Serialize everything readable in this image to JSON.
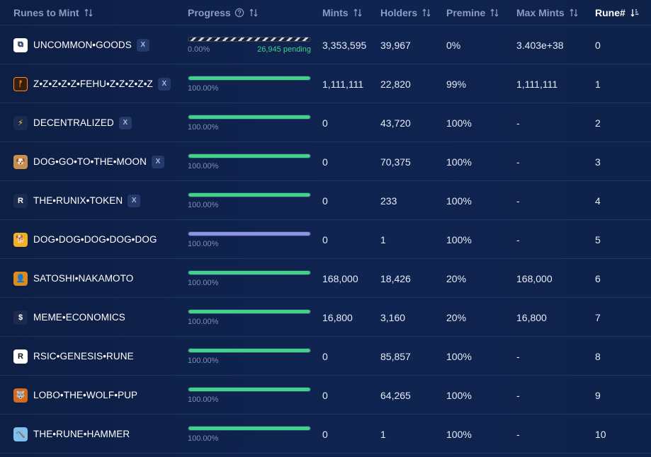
{
  "header": {
    "name": "Runes to Mint",
    "progress": "Progress",
    "mints": "Mints",
    "holders": "Holders",
    "premine": "Premine",
    "max_mints": "Max Mints",
    "rune_num": "Rune#"
  },
  "colors": {
    "progress_green": "#3ed28b",
    "progress_purple": "#8f91e6",
    "active_header": "#ffffff",
    "header_text": "#8a9cc4"
  },
  "rows": [
    {
      "icon": "square-glyph-icon",
      "glyph": "⧉",
      "name": "UNCOMMON•GOODS",
      "x": "X",
      "progress": 0,
      "bar": "pending",
      "pct": "0.00%",
      "pending": "26,945 pending",
      "mints": "3,353,595",
      "holders": "39,967",
      "premine": "0%",
      "max": "3.403e+38",
      "rune": "0"
    },
    {
      "icon": "fehu-icon",
      "glyph": "ᚠ",
      "name": "Z•Z•Z•Z•Z•FEHU•Z•Z•Z•Z•Z",
      "x": "X",
      "progress": 1,
      "bar": "green",
      "pct": "100.00%",
      "mints": "1,111,111",
      "holders": "22,820",
      "premine": "99%",
      "max": "1,111,111",
      "rune": "1"
    },
    {
      "icon": "lightning-icon",
      "glyph": "⚡",
      "name": "DECENTRALIZED",
      "x": "X",
      "progress": 1,
      "bar": "green",
      "pct": "100.00%",
      "mints": "0",
      "holders": "43,720",
      "premine": "100%",
      "max": "-",
      "rune": "2"
    },
    {
      "icon": "dog-avatar-icon",
      "glyph": "🐶",
      "name": "DOG•GO•TO•THE•MOON",
      "x": "X",
      "progress": 1,
      "bar": "green",
      "pct": "100.00%",
      "mints": "0",
      "holders": "70,375",
      "premine": "100%",
      "max": "-",
      "rune": "3"
    },
    {
      "icon": "runix-r-icon",
      "glyph": "R",
      "name": "THE•RUNIX•TOKEN",
      "x": "X",
      "progress": 1,
      "bar": "green",
      "pct": "100.00%",
      "mints": "0",
      "holders": "233",
      "premine": "100%",
      "max": "-",
      "rune": "4"
    },
    {
      "icon": "yellow-dog-icon",
      "glyph": "🐕",
      "name": "DOG•DOG•DOG•DOG•DOG",
      "progress": 1,
      "bar": "purple",
      "pct": "100.00%",
      "mints": "0",
      "holders": "1",
      "premine": "100%",
      "max": "-",
      "rune": "5"
    },
    {
      "icon": "satoshi-silhouette-icon",
      "glyph": "👤",
      "name": "SATOSHI•NAKAMOTO",
      "progress": 1,
      "bar": "green",
      "pct": "100.00%",
      "mints": "168,000",
      "holders": "18,426",
      "premine": "20%",
      "max": "168,000",
      "rune": "6"
    },
    {
      "icon": "dollar-icon",
      "glyph": "$",
      "name": "MEME•ECONOMICS",
      "progress": 1,
      "bar": "green",
      "pct": "100.00%",
      "mints": "16,800",
      "holders": "3,160",
      "premine": "20%",
      "max": "16,800",
      "rune": "7"
    },
    {
      "icon": "rsic-r-icon",
      "glyph": "R",
      "name": "RSIC•GENESIS•RUNE",
      "progress": 1,
      "bar": "green",
      "pct": "100.00%",
      "mints": "0",
      "holders": "85,857",
      "premine": "100%",
      "max": "-",
      "rune": "8"
    },
    {
      "icon": "wolf-pup-icon",
      "glyph": "🐺",
      "name": "LOBO•THE•WOLF•PUP",
      "progress": 1,
      "bar": "green",
      "pct": "100.00%",
      "mints": "0",
      "holders": "64,265",
      "premine": "100%",
      "max": "-",
      "rune": "9"
    },
    {
      "icon": "hammer-icon",
      "glyph": "🔨",
      "name": "THE•RUNE•HAMMER",
      "progress": 1,
      "bar": "green",
      "pct": "100.00%",
      "mints": "0",
      "holders": "1",
      "premine": "100%",
      "max": "-",
      "rune": "10"
    }
  ]
}
